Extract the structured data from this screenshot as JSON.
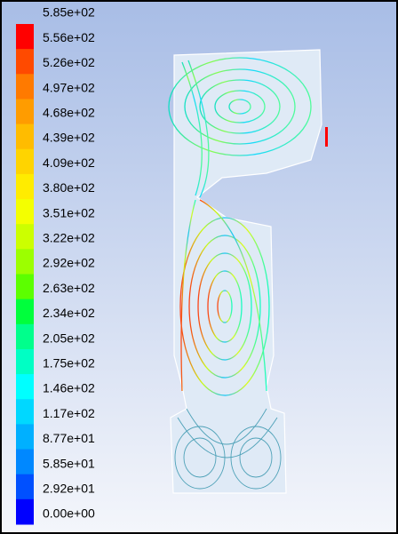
{
  "legend": {
    "labels": [
      "5.85e+02",
      "5.56e+02",
      "5.26e+02",
      "4.97e+02",
      "4.68e+02",
      "4.39e+02",
      "4.09e+02",
      "3.80e+02",
      "3.51e+02",
      "3.22e+02",
      "2.92e+02",
      "2.63e+02",
      "2.34e+02",
      "2.05e+02",
      "1.75e+02",
      "1.46e+02",
      "1.17e+02",
      "8.77e+01",
      "5.85e+01",
      "2.92e+01",
      "0.00e+00"
    ],
    "colors": [
      "#ff0000",
      "#ff4a00",
      "#ff7a00",
      "#ff9c00",
      "#ffbc00",
      "#ffd400",
      "#ffec00",
      "#f4ff00",
      "#ccff00",
      "#9cff00",
      "#5cff00",
      "#00ff3c",
      "#00ff8c",
      "#00ffc4",
      "#00ffff",
      "#00d8ff",
      "#00b0ff",
      "#0088ff",
      "#0050ff",
      "#0000ff"
    ]
  }
}
